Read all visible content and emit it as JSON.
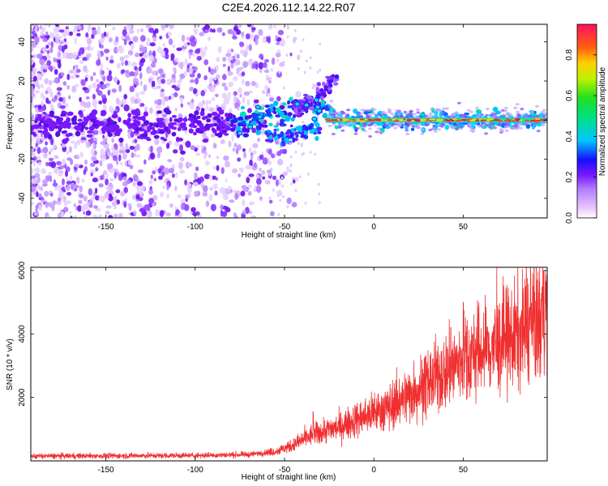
{
  "figure": {
    "title": "C2E4.2026.112.14.22.R07"
  },
  "chart_data": [
    {
      "type": "heatmap",
      "title": "C2E4.2026.112.14.22.R07",
      "xlabel": "Height of straight line (km)",
      "ylabel": "Frequency (Hz)",
      "xlim": [
        -192,
        97
      ],
      "ylim": [
        -50,
        49
      ],
      "x_ticks": [
        -150,
        -100,
        -50,
        0,
        50
      ],
      "y_ticks": [
        40,
        20,
        0,
        -20,
        -40
      ],
      "description_series": [
        {
          "name": "carrier ridge",
          "points": [
            [
              -190,
              -2
            ],
            [
              -100,
              -3
            ],
            [
              -70,
              0
            ],
            [
              -50,
              4
            ],
            [
              -35,
              8
            ],
            [
              -25,
              3
            ],
            [
              -20,
              0
            ],
            [
              0,
              0
            ],
            [
              50,
              0
            ],
            [
              95,
              0
            ]
          ]
        },
        {
          "name": "upper branch",
          "points": [
            [
              -45,
              5
            ],
            [
              -35,
              10
            ],
            [
              -25,
              18
            ],
            [
              -20,
              24
            ]
          ]
        },
        {
          "name": "lower branch",
          "points": [
            [
              -60,
              -6
            ],
            [
              -50,
              -10
            ],
            [
              -40,
              -6
            ],
            [
              -30,
              -2
            ]
          ]
        }
      ],
      "colorbar": {
        "label": "Normalized spectral amplitude",
        "range": [
          0,
          0.95
        ],
        "ticks": [
          0.0,
          0.2,
          0.4,
          0.6,
          0.8
        ]
      }
    },
    {
      "type": "line",
      "xlabel": "Height of straight line (km)",
      "ylabel": "SNR (10 * v/v)",
      "xlim": [
        -192,
        97
      ],
      "ylim": [
        0,
        6100
      ],
      "x_ticks": [
        -150,
        -100,
        -50,
        0,
        50
      ],
      "y_ticks": [
        2000,
        4000,
        6000
      ],
      "color": "#f03030",
      "series": [
        {
          "name": "SNR",
          "x": [
            -190,
            -150,
            -100,
            -70,
            -55,
            -45,
            -35,
            -30,
            -25,
            -20,
            -10,
            0,
            10,
            20,
            30,
            40,
            50,
            60,
            70,
            80,
            90,
            95
          ],
          "y": [
            150,
            160,
            170,
            200,
            300,
            500,
            800,
            900,
            1000,
            1050,
            1300,
            1500,
            1750,
            2100,
            2450,
            2800,
            3200,
            3450,
            3650,
            3950,
            4350,
            4600
          ]
        }
      ],
      "spikes": [
        {
          "x": 50,
          "y": 5000
        },
        {
          "x": 43,
          "y": 4200
        },
        {
          "x": 95,
          "y": 6000
        },
        {
          "x": -34,
          "y": 1550
        }
      ]
    }
  ]
}
